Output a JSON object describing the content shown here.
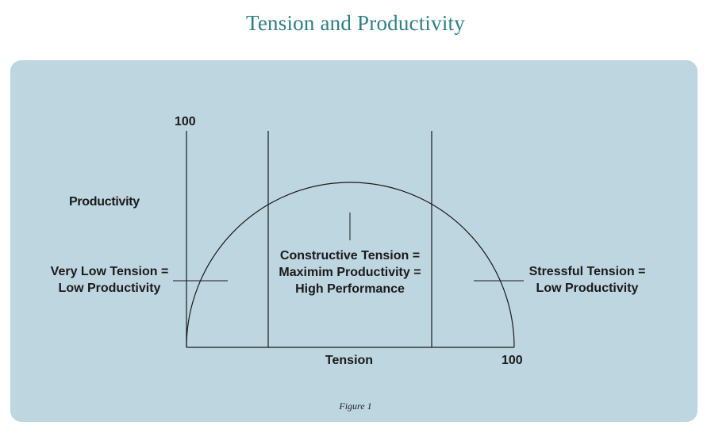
{
  "title": "Tension and Productivity",
  "caption": "Figure 1",
  "axes": {
    "y_label": "Productivity",
    "y_max_label": "100",
    "x_label": "Tension",
    "x_max_label": "100"
  },
  "zones": {
    "left": {
      "line1": "Very Low Tension =",
      "line2": "Low Productivity"
    },
    "center": {
      "line1": "Constructive Tension =",
      "line2": "Maximim Productivity =",
      "line3": "High Performance"
    },
    "right": {
      "line1": "Stressful Tension =",
      "line2": "Low Productivity"
    }
  },
  "colors": {
    "title": "#2f7f86",
    "panel": "#bed6e0",
    "lines": "#1a1a1a"
  }
}
